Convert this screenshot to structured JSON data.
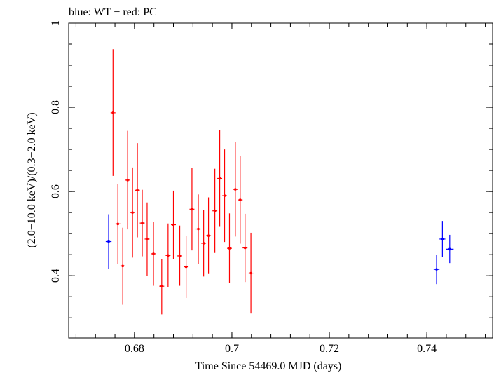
{
  "chart_data": {
    "type": "scatter",
    "title": "blue: WT − red: PC",
    "xlabel": "Time Since 54469.0 MJD (days)",
    "ylabel": "(2.0−10.0 keV)/(0.3−2.0 keV)",
    "xlim": [
      0.6665,
      0.7535
    ],
    "ylim": [
      0.252,
      1.0
    ],
    "xticks": [
      0.68,
      0.7,
      0.72,
      0.74
    ],
    "xtick_labels": [
      "0.68",
      "0.7",
      "0.72",
      "0.74"
    ],
    "yticks": [
      0.4,
      0.6,
      0.8,
      1.0
    ],
    "ytick_labels": [
      "0.4",
      "0.6",
      "0.8",
      "1"
    ],
    "grid": false,
    "series": [
      {
        "name": "WT",
        "color": "#0000ff",
        "points": [
          {
            "x": 0.6747,
            "y": 0.481,
            "xerr": 0.0006,
            "ylo": 0.416,
            "yhi": 0.546
          },
          {
            "x": 0.742,
            "y": 0.415,
            "xerr": 0.0006,
            "ylo": 0.38,
            "yhi": 0.45
          },
          {
            "x": 0.7432,
            "y": 0.487,
            "xerr": 0.0006,
            "ylo": 0.445,
            "yhi": 0.53
          },
          {
            "x": 0.7447,
            "y": 0.463,
            "xerr": 0.0008,
            "ylo": 0.43,
            "yhi": 0.497
          }
        ]
      },
      {
        "name": "PC",
        "color": "#ff0000",
        "points": [
          {
            "x": 0.6756,
            "y": 0.787,
            "xerr": 0.0005,
            "ylo": 0.637,
            "yhi": 0.938
          },
          {
            "x": 0.6766,
            "y": 0.523,
            "xerr": 0.0005,
            "ylo": 0.428,
            "yhi": 0.617
          },
          {
            "x": 0.6776,
            "y": 0.423,
            "xerr": 0.0005,
            "ylo": 0.331,
            "yhi": 0.514
          },
          {
            "x": 0.6786,
            "y": 0.627,
            "xerr": 0.0005,
            "ylo": 0.51,
            "yhi": 0.744
          },
          {
            "x": 0.6796,
            "y": 0.55,
            "xerr": 0.0005,
            "ylo": 0.443,
            "yhi": 0.657
          },
          {
            "x": 0.6806,
            "y": 0.603,
            "xerr": 0.0005,
            "ylo": 0.491,
            "yhi": 0.715
          },
          {
            "x": 0.6816,
            "y": 0.525,
            "xerr": 0.0005,
            "ylo": 0.446,
            "yhi": 0.604
          },
          {
            "x": 0.6826,
            "y": 0.487,
            "xerr": 0.0005,
            "ylo": 0.4,
            "yhi": 0.574
          },
          {
            "x": 0.6839,
            "y": 0.452,
            "xerr": 0.0005,
            "ylo": 0.376,
            "yhi": 0.528
          },
          {
            "x": 0.6856,
            "y": 0.375,
            "xerr": 0.0005,
            "ylo": 0.308,
            "yhi": 0.44
          },
          {
            "x": 0.6869,
            "y": 0.448,
            "xerr": 0.0005,
            "ylo": 0.372,
            "yhi": 0.524
          },
          {
            "x": 0.688,
            "y": 0.521,
            "xerr": 0.0005,
            "ylo": 0.44,
            "yhi": 0.602
          },
          {
            "x": 0.6893,
            "y": 0.447,
            "xerr": 0.0005,
            "ylo": 0.376,
            "yhi": 0.519
          },
          {
            "x": 0.6906,
            "y": 0.421,
            "xerr": 0.0005,
            "ylo": 0.347,
            "yhi": 0.495
          },
          {
            "x": 0.6918,
            "y": 0.558,
            "xerr": 0.0005,
            "ylo": 0.46,
            "yhi": 0.656
          },
          {
            "x": 0.6931,
            "y": 0.511,
            "xerr": 0.0005,
            "ylo": 0.428,
            "yhi": 0.593
          },
          {
            "x": 0.6942,
            "y": 0.477,
            "xerr": 0.0005,
            "ylo": 0.398,
            "yhi": 0.556
          },
          {
            "x": 0.6952,
            "y": 0.495,
            "xerr": 0.0005,
            "ylo": 0.404,
            "yhi": 0.586
          },
          {
            "x": 0.6965,
            "y": 0.554,
            "xerr": 0.0005,
            "ylo": 0.454,
            "yhi": 0.654
          },
          {
            "x": 0.6975,
            "y": 0.631,
            "xerr": 0.0005,
            "ylo": 0.516,
            "yhi": 0.746
          },
          {
            "x": 0.6985,
            "y": 0.59,
            "xerr": 0.0005,
            "ylo": 0.48,
            "yhi": 0.7
          },
          {
            "x": 0.6995,
            "y": 0.465,
            "xerr": 0.0005,
            "ylo": 0.383,
            "yhi": 0.548
          },
          {
            "x": 0.7007,
            "y": 0.605,
            "xerr": 0.0005,
            "ylo": 0.493,
            "yhi": 0.717
          },
          {
            "x": 0.7017,
            "y": 0.58,
            "xerr": 0.0005,
            "ylo": 0.476,
            "yhi": 0.684
          },
          {
            "x": 0.7027,
            "y": 0.466,
            "xerr": 0.0005,
            "ylo": 0.385,
            "yhi": 0.547
          },
          {
            "x": 0.7039,
            "y": 0.406,
            "xerr": 0.0005,
            "ylo": 0.31,
            "yhi": 0.502
          }
        ]
      }
    ]
  }
}
